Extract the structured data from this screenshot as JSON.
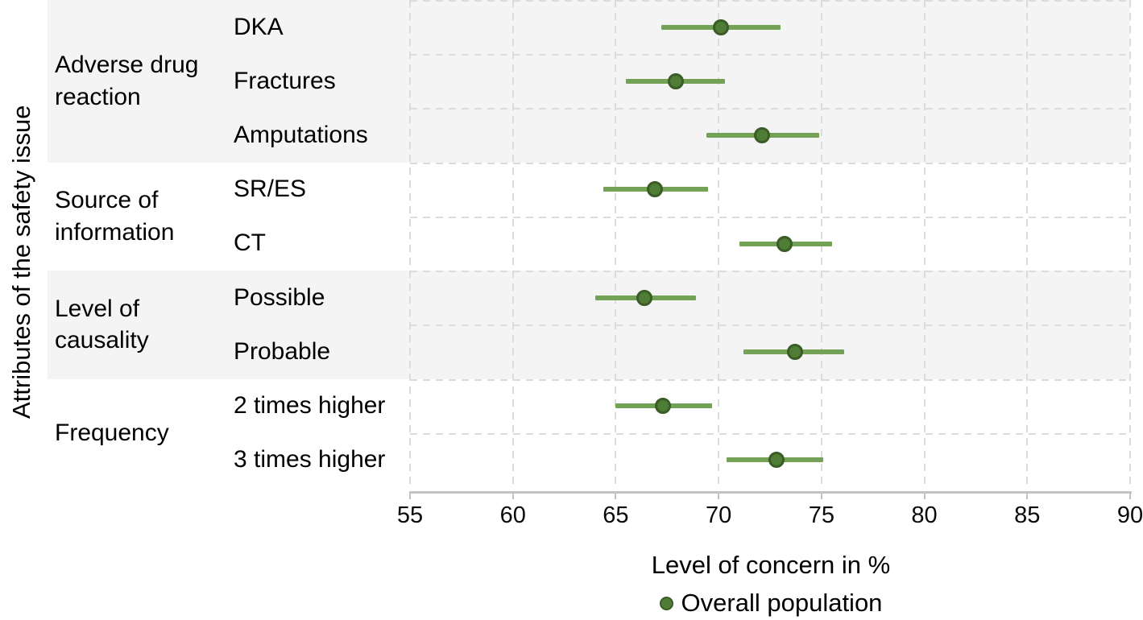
{
  "figure": {
    "y_axis_title": "Attributes of the safety issue",
    "x_axis_title": "Level of concern in %",
    "legend": {
      "label": "Overall population"
    }
  },
  "chart_data": {
    "type": "scatter",
    "subtype": "dot-and-interval (forest plot), horizontal",
    "title": "",
    "xlabel": "Level of concern in %",
    "ylabel": "Attributes of the safety issue",
    "x_axis": {
      "range": [
        55,
        90
      ],
      "ticks": [
        55,
        60,
        65,
        70,
        75,
        80,
        85,
        90
      ]
    },
    "grid": "dashed, vertical at each tick and horizontal at each row boundary",
    "legend_position": "bottom center",
    "series_name": "Overall population",
    "groups": [
      {
        "label": "Adverse drug reaction",
        "shaded": true,
        "rows": [
          {
            "label": "DKA",
            "value": 70.1,
            "ci_low": 67.2,
            "ci_high": 73.0
          },
          {
            "label": "Fractures",
            "value": 67.9,
            "ci_low": 65.5,
            "ci_high": 70.3
          },
          {
            "label": "Amputations",
            "value": 72.1,
            "ci_low": 69.4,
            "ci_high": 74.9
          }
        ]
      },
      {
        "label": "Source of information",
        "shaded": false,
        "rows": [
          {
            "label": "SR/ES",
            "value": 66.9,
            "ci_low": 64.4,
            "ci_high": 69.5
          },
          {
            "label": "CT",
            "value": 73.2,
            "ci_low": 71.0,
            "ci_high": 75.5
          }
        ]
      },
      {
        "label": "Level of causality",
        "shaded": true,
        "rows": [
          {
            "label": "Possible",
            "value": 66.4,
            "ci_low": 64.0,
            "ci_high": 68.9
          },
          {
            "label": "Probable",
            "value": 73.7,
            "ci_low": 71.2,
            "ci_high": 76.1
          }
        ]
      },
      {
        "label": "Frequency",
        "shaded": false,
        "rows": [
          {
            "label": "2 times higher",
            "value": 67.3,
            "ci_low": 65.0,
            "ci_high": 69.7
          },
          {
            "label": "3 times higher",
            "value": 72.8,
            "ci_low": 70.4,
            "ci_high": 75.1
          }
        ]
      }
    ],
    "colors": {
      "bar": "#73a156",
      "dot_fill": "#4f7d35",
      "dot_stroke": "#3a5c27",
      "band": "#f4f4f4",
      "grid": "#dcdcdc",
      "axis": "#c2c2c2",
      "text": "#000000"
    }
  }
}
